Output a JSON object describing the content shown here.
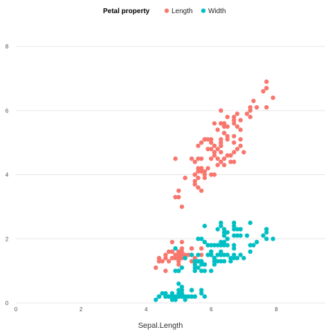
{
  "chart_data": {
    "type": "scatter",
    "title": "",
    "xlabel": "Sepal.Length",
    "ylabel": "",
    "xlim": [
      0,
      9.5
    ],
    "ylim": [
      0,
      8.8
    ],
    "x_ticks": [
      0,
      2,
      4,
      6,
      8
    ],
    "y_ticks": [
      0,
      2,
      4,
      6,
      8
    ],
    "grid": "horizontal",
    "legend": {
      "title": "Petal property",
      "position": "top",
      "entries": [
        {
          "name": "Length",
          "color": "#F8766D"
        },
        {
          "name": "Width",
          "color": "#00BFC4"
        }
      ]
    },
    "series": [
      {
        "name": "Length",
        "color": "#F8766D",
        "points": [
          [
            5.1,
            1.4
          ],
          [
            4.9,
            1.4
          ],
          [
            4.7,
            1.3
          ],
          [
            4.6,
            1.5
          ],
          [
            5.0,
            1.4
          ],
          [
            5.4,
            1.7
          ],
          [
            4.6,
            1.4
          ],
          [
            5.0,
            1.5
          ],
          [
            4.4,
            1.4
          ],
          [
            4.9,
            1.5
          ],
          [
            5.4,
            1.5
          ],
          [
            4.8,
            1.6
          ],
          [
            4.8,
            1.4
          ],
          [
            4.3,
            1.1
          ],
          [
            5.8,
            1.2
          ],
          [
            5.7,
            1.5
          ],
          [
            5.4,
            1.3
          ],
          [
            5.1,
            1.4
          ],
          [
            5.7,
            1.7
          ],
          [
            5.1,
            1.5
          ],
          [
            5.4,
            1.7
          ],
          [
            5.1,
            1.5
          ],
          [
            4.6,
            1.0
          ],
          [
            5.1,
            1.7
          ],
          [
            4.8,
            1.9
          ],
          [
            5.0,
            1.6
          ],
          [
            5.0,
            1.6
          ],
          [
            5.2,
            1.5
          ],
          [
            5.2,
            1.4
          ],
          [
            4.7,
            1.6
          ],
          [
            4.8,
            1.6
          ],
          [
            5.4,
            1.5
          ],
          [
            5.2,
            1.5
          ],
          [
            5.5,
            1.4
          ],
          [
            4.9,
            1.5
          ],
          [
            5.0,
            1.2
          ],
          [
            5.5,
            1.3
          ],
          [
            4.9,
            1.4
          ],
          [
            4.4,
            1.3
          ],
          [
            5.1,
            1.5
          ],
          [
            5.0,
            1.3
          ],
          [
            4.5,
            1.3
          ],
          [
            4.4,
            1.3
          ],
          [
            5.0,
            1.6
          ],
          [
            5.1,
            1.9
          ],
          [
            4.8,
            1.4
          ],
          [
            5.1,
            1.6
          ],
          [
            4.6,
            1.4
          ],
          [
            5.3,
            1.5
          ],
          [
            5.0,
            1.4
          ],
          [
            7.0,
            4.7
          ],
          [
            6.4,
            4.5
          ],
          [
            6.9,
            4.9
          ],
          [
            5.5,
            4.0
          ],
          [
            6.5,
            4.6
          ],
          [
            5.7,
            4.5
          ],
          [
            6.3,
            4.7
          ],
          [
            4.9,
            3.3
          ],
          [
            6.6,
            4.6
          ],
          [
            5.2,
            3.9
          ],
          [
            5.0,
            3.5
          ],
          [
            5.9,
            4.2
          ],
          [
            6.0,
            4.0
          ],
          [
            6.1,
            4.7
          ],
          [
            5.6,
            3.6
          ],
          [
            6.7,
            4.4
          ],
          [
            5.6,
            4.5
          ],
          [
            5.8,
            4.1
          ],
          [
            6.2,
            4.5
          ],
          [
            5.6,
            3.9
          ],
          [
            5.9,
            4.8
          ],
          [
            6.1,
            4.0
          ],
          [
            6.3,
            4.9
          ],
          [
            6.1,
            4.7
          ],
          [
            6.4,
            4.3
          ],
          [
            6.6,
            4.4
          ],
          [
            6.8,
            4.8
          ],
          [
            6.7,
            5.0
          ],
          [
            6.0,
            4.5
          ],
          [
            5.7,
            3.5
          ],
          [
            5.5,
            3.8
          ],
          [
            5.5,
            3.7
          ],
          [
            5.8,
            3.9
          ],
          [
            6.0,
            5.1
          ],
          [
            5.4,
            4.5
          ],
          [
            6.0,
            4.5
          ],
          [
            6.7,
            4.7
          ],
          [
            6.3,
            4.4
          ],
          [
            5.6,
            4.1
          ],
          [
            5.5,
            4.0
          ],
          [
            5.5,
            4.4
          ],
          [
            6.1,
            4.6
          ],
          [
            5.8,
            4.0
          ],
          [
            5.0,
            3.3
          ],
          [
            5.6,
            4.2
          ],
          [
            5.7,
            4.2
          ],
          [
            5.7,
            4.2
          ],
          [
            6.2,
            4.3
          ],
          [
            5.1,
            3.0
          ],
          [
            5.7,
            4.1
          ],
          [
            6.3,
            6.0
          ],
          [
            5.8,
            5.1
          ],
          [
            7.1,
            5.9
          ],
          [
            6.3,
            5.6
          ],
          [
            6.5,
            5.8
          ],
          [
            7.6,
            6.6
          ],
          [
            4.9,
            4.5
          ],
          [
            7.3,
            6.3
          ],
          [
            6.7,
            5.8
          ],
          [
            7.2,
            6.1
          ],
          [
            6.5,
            5.1
          ],
          [
            6.4,
            5.3
          ],
          [
            6.8,
            5.5
          ],
          [
            5.7,
            5.0
          ],
          [
            5.8,
            5.1
          ],
          [
            6.4,
            5.3
          ],
          [
            6.5,
            5.5
          ],
          [
            7.7,
            6.7
          ],
          [
            7.7,
            6.9
          ],
          [
            6.0,
            5.0
          ],
          [
            6.9,
            5.7
          ],
          [
            5.6,
            4.9
          ],
          [
            7.7,
            6.7
          ],
          [
            6.3,
            4.9
          ],
          [
            6.7,
            5.7
          ],
          [
            7.2,
            6.0
          ],
          [
            6.2,
            4.8
          ],
          [
            6.1,
            4.9
          ],
          [
            6.4,
            5.6
          ],
          [
            7.2,
            5.8
          ],
          [
            7.4,
            6.1
          ],
          [
            7.9,
            6.4
          ],
          [
            6.4,
            5.6
          ],
          [
            6.3,
            5.1
          ],
          [
            6.1,
            5.6
          ],
          [
            7.7,
            6.1
          ],
          [
            6.3,
            5.6
          ],
          [
            6.4,
            5.5
          ],
          [
            6.0,
            4.8
          ],
          [
            6.9,
            5.4
          ],
          [
            6.7,
            5.6
          ],
          [
            6.9,
            5.1
          ],
          [
            5.8,
            5.1
          ],
          [
            6.8,
            5.9
          ],
          [
            6.7,
            5.7
          ],
          [
            6.7,
            5.2
          ],
          [
            6.3,
            5.0
          ],
          [
            6.5,
            5.2
          ],
          [
            6.2,
            5.4
          ],
          [
            5.9,
            5.1
          ]
        ]
      },
      {
        "name": "Width",
        "color": "#00BFC4",
        "points": [
          [
            5.1,
            0.2
          ],
          [
            4.9,
            0.2
          ],
          [
            4.7,
            0.2
          ],
          [
            4.6,
            0.2
          ],
          [
            5.0,
            0.2
          ],
          [
            5.4,
            0.4
          ],
          [
            4.6,
            0.3
          ],
          [
            5.0,
            0.2
          ],
          [
            4.4,
            0.2
          ],
          [
            4.9,
            0.1
          ],
          [
            5.4,
            0.2
          ],
          [
            4.8,
            0.2
          ],
          [
            4.8,
            0.1
          ],
          [
            4.3,
            0.1
          ],
          [
            5.8,
            0.2
          ],
          [
            5.7,
            0.4
          ],
          [
            5.4,
            0.4
          ],
          [
            5.1,
            0.3
          ],
          [
            5.7,
            0.3
          ],
          [
            5.1,
            0.3
          ],
          [
            5.4,
            0.2
          ],
          [
            5.1,
            0.4
          ],
          [
            4.6,
            0.2
          ],
          [
            5.1,
            0.5
          ],
          [
            4.8,
            0.2
          ],
          [
            5.0,
            0.2
          ],
          [
            5.0,
            0.4
          ],
          [
            5.2,
            0.2
          ],
          [
            5.2,
            0.2
          ],
          [
            4.7,
            0.2
          ],
          [
            4.8,
            0.2
          ],
          [
            5.4,
            0.4
          ],
          [
            5.2,
            0.1
          ],
          [
            5.5,
            0.2
          ],
          [
            4.9,
            0.2
          ],
          [
            5.0,
            0.2
          ],
          [
            5.5,
            0.2
          ],
          [
            4.9,
            0.1
          ],
          [
            4.4,
            0.2
          ],
          [
            5.1,
            0.2
          ],
          [
            5.0,
            0.3
          ],
          [
            4.5,
            0.3
          ],
          [
            4.4,
            0.2
          ],
          [
            5.0,
            0.6
          ],
          [
            5.1,
            0.4
          ],
          [
            4.8,
            0.3
          ],
          [
            5.1,
            0.2
          ],
          [
            4.6,
            0.2
          ],
          [
            5.3,
            0.2
          ],
          [
            5.0,
            0.2
          ],
          [
            7.0,
            1.4
          ],
          [
            6.4,
            1.5
          ],
          [
            6.9,
            1.5
          ],
          [
            5.5,
            1.3
          ],
          [
            6.5,
            1.5
          ],
          [
            5.7,
            1.3
          ],
          [
            6.3,
            1.6
          ],
          [
            4.9,
            1.0
          ],
          [
            6.6,
            1.3
          ],
          [
            5.2,
            1.4
          ],
          [
            5.0,
            1.0
          ],
          [
            5.9,
            1.5
          ],
          [
            6.0,
            1.0
          ],
          [
            6.1,
            1.4
          ],
          [
            5.6,
            1.3
          ],
          [
            6.7,
            1.4
          ],
          [
            5.6,
            1.5
          ],
          [
            5.8,
            1.0
          ],
          [
            6.2,
            1.5
          ],
          [
            5.6,
            1.1
          ],
          [
            5.9,
            1.8
          ],
          [
            6.1,
            1.3
          ],
          [
            6.3,
            1.5
          ],
          [
            6.1,
            1.2
          ],
          [
            6.4,
            1.3
          ],
          [
            6.6,
            1.4
          ],
          [
            6.8,
            1.4
          ],
          [
            6.7,
            1.7
          ],
          [
            6.0,
            1.5
          ],
          [
            5.7,
            1.0
          ],
          [
            5.5,
            1.1
          ],
          [
            5.5,
            1.0
          ],
          [
            5.8,
            1.2
          ],
          [
            6.0,
            1.6
          ],
          [
            5.4,
            1.5
          ],
          [
            6.0,
            1.6
          ],
          [
            6.7,
            1.5
          ],
          [
            6.3,
            1.3
          ],
          [
            5.6,
            1.3
          ],
          [
            5.5,
            1.3
          ],
          [
            5.5,
            1.2
          ],
          [
            6.1,
            1.4
          ],
          [
            5.8,
            1.2
          ],
          [
            5.0,
            1.0
          ],
          [
            5.6,
            1.3
          ],
          [
            5.7,
            1.2
          ],
          [
            5.7,
            1.3
          ],
          [
            6.2,
            1.3
          ],
          [
            5.1,
            1.1
          ],
          [
            5.7,
            1.3
          ],
          [
            6.3,
            2.5
          ],
          [
            5.8,
            1.9
          ],
          [
            7.1,
            2.1
          ],
          [
            6.3,
            1.8
          ],
          [
            6.5,
            2.2
          ],
          [
            7.6,
            2.1
          ],
          [
            4.9,
            1.7
          ],
          [
            7.3,
            1.8
          ],
          [
            6.7,
            1.8
          ],
          [
            7.2,
            2.5
          ],
          [
            6.5,
            2.0
          ],
          [
            6.4,
            1.9
          ],
          [
            6.8,
            2.1
          ],
          [
            5.7,
            2.0
          ],
          [
            5.8,
            2.4
          ],
          [
            6.4,
            2.3
          ],
          [
            6.5,
            1.8
          ],
          [
            7.7,
            2.2
          ],
          [
            7.7,
            2.3
          ],
          [
            6.0,
            1.5
          ],
          [
            6.9,
            2.3
          ],
          [
            5.6,
            2.0
          ],
          [
            7.7,
            2.0
          ],
          [
            6.3,
            1.8
          ],
          [
            6.7,
            2.1
          ],
          [
            7.2,
            1.8
          ],
          [
            6.2,
            1.8
          ],
          [
            6.1,
            1.8
          ],
          [
            6.4,
            2.1
          ],
          [
            7.2,
            1.6
          ],
          [
            7.4,
            1.9
          ],
          [
            7.9,
            2.0
          ],
          [
            6.4,
            2.2
          ],
          [
            6.3,
            1.5
          ],
          [
            6.1,
            1.4
          ],
          [
            7.7,
            2.3
          ],
          [
            6.3,
            2.4
          ],
          [
            6.4,
            1.8
          ],
          [
            6.0,
            1.8
          ],
          [
            6.9,
            2.1
          ],
          [
            6.7,
            2.4
          ],
          [
            6.9,
            2.3
          ],
          [
            5.8,
            1.9
          ],
          [
            6.8,
            2.3
          ],
          [
            6.7,
            2.5
          ],
          [
            6.7,
            2.3
          ],
          [
            6.3,
            1.9
          ],
          [
            6.5,
            2.0
          ],
          [
            6.2,
            2.3
          ],
          [
            5.9,
            1.8
          ]
        ]
      }
    ]
  }
}
